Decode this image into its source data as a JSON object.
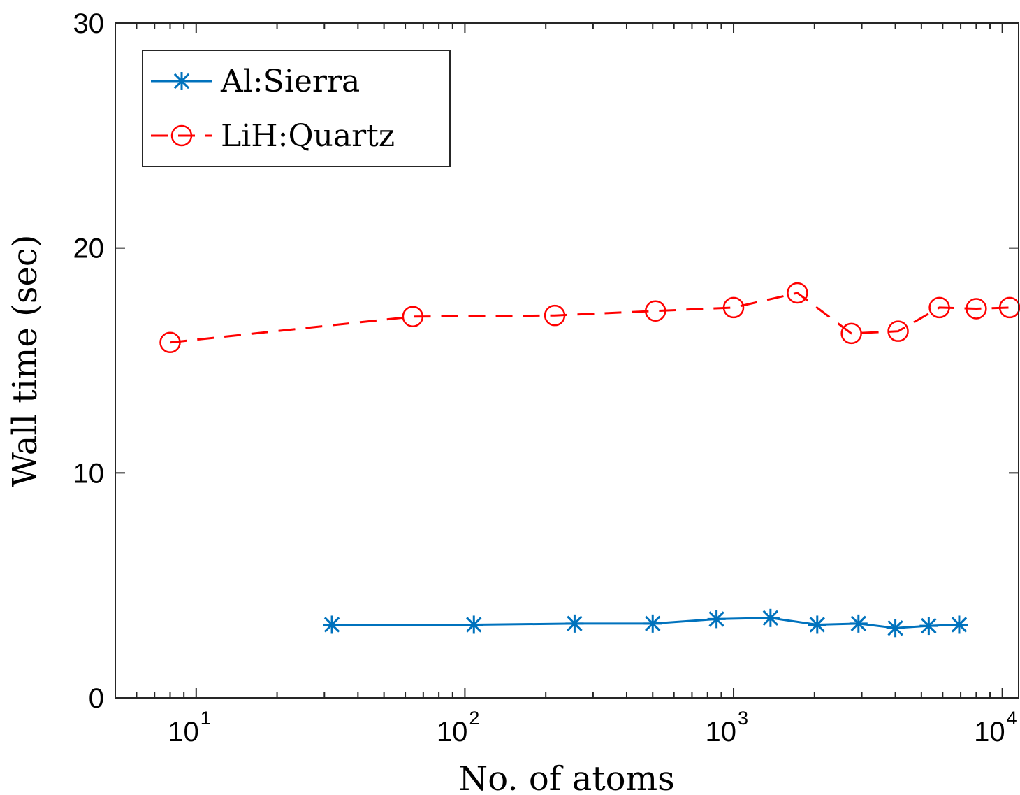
{
  "chart_data": {
    "type": "line",
    "xlabel": "No. of atoms",
    "ylabel": "Wall time (sec)",
    "xscale": "log",
    "xlim": [
      5,
      11500
    ],
    "ylim": [
      0,
      30
    ],
    "grid": false,
    "legend_position": "top-left",
    "x_ticks": [
      {
        "base": "10",
        "exp": "1",
        "value": 10
      },
      {
        "base": "10",
        "exp": "2",
        "value": 100
      },
      {
        "base": "10",
        "exp": "3",
        "value": 1000
      },
      {
        "base": "10",
        "exp": "4",
        "value": 10000
      }
    ],
    "y_ticks": [
      "0",
      "10",
      "20",
      "30"
    ],
    "series": [
      {
        "name": "Al:Sierra",
        "color": "#0072BD",
        "line_style": "solid",
        "marker": "asterisk",
        "x": [
          32,
          108,
          256,
          500,
          864,
          1372,
          2048,
          2916,
          4000,
          5324,
          6912
        ],
        "y": [
          3.25,
          3.25,
          3.3,
          3.3,
          3.5,
          3.55,
          3.25,
          3.3,
          3.1,
          3.2,
          3.25
        ]
      },
      {
        "name": "LiH:Quartz",
        "color": "#FF0000",
        "line_style": "dashed",
        "marker": "circle",
        "x": [
          8,
          64,
          216,
          512,
          1000,
          1728,
          2744,
          4096,
          5832,
          8000,
          10648
        ],
        "y": [
          15.8,
          16.95,
          17.0,
          17.2,
          17.35,
          18.0,
          16.2,
          16.3,
          17.35,
          17.3,
          17.35
        ]
      }
    ]
  }
}
